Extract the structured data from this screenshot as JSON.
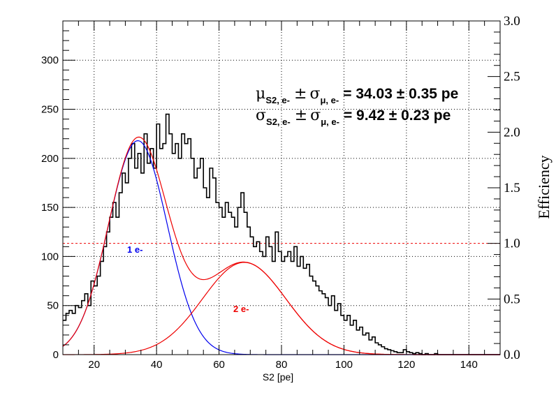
{
  "chart_data": {
    "type": "histogram",
    "title": "",
    "xlabel": "S2 [pe]",
    "ylabel": "",
    "y2label": "Efficiency",
    "xlim": [
      10,
      150
    ],
    "ylim": [
      0,
      340
    ],
    "y2lim": [
      0,
      3.0
    ],
    "xticks": [
      "20",
      "40",
      "60",
      "80",
      "100",
      "120",
      "140"
    ],
    "yticks": [
      "0",
      "50",
      "100",
      "150",
      "200",
      "250",
      "300"
    ],
    "y2ticks": [
      "0.0",
      "0.5",
      "1.0",
      "1.5",
      "2.0",
      "2.5",
      "3.0"
    ],
    "grid": true,
    "histogram": {
      "bin_width": 1,
      "x_start": 10,
      "values": [
        35,
        42,
        45,
        42,
        50,
        48,
        55,
        62,
        50,
        75,
        70,
        80,
        95,
        110,
        125,
        140,
        155,
        140,
        165,
        185,
        175,
        200,
        215,
        190,
        205,
        185,
        225,
        195,
        210,
        190,
        235,
        210,
        215,
        245,
        225,
        205,
        215,
        200,
        225,
        215,
        220,
        200,
        180,
        190,
        200,
        170,
        160,
        190,
        180,
        155,
        150,
        140,
        155,
        145,
        140,
        130,
        150,
        165,
        145,
        130,
        120,
        110,
        115,
        105,
        100,
        120,
        110,
        95,
        125,
        105,
        95,
        100,
        105,
        95,
        110,
        90,
        100,
        88,
        92,
        80,
        75,
        70,
        65,
        62,
        58,
        50,
        60,
        45,
        52,
        40,
        35,
        40,
        30,
        35,
        25,
        28,
        20,
        22,
        15,
        18,
        12,
        10,
        8,
        6,
        5,
        4,
        3,
        2,
        2,
        5,
        3,
        2,
        1,
        2,
        1,
        0,
        1,
        0,
        0,
        1,
        0,
        0,
        0,
        0,
        0,
        0,
        0,
        0,
        0,
        0,
        0,
        0,
        0,
        0,
        0,
        0,
        0,
        0,
        0,
        0
      ]
    },
    "fits": [
      {
        "name": "1 e-",
        "type": "gaussian",
        "color": "#0000ee",
        "amplitude": 218,
        "mean": 34.03,
        "sigma": 9.42
      },
      {
        "name": "2 e-",
        "type": "gaussian",
        "color": "#ee0000",
        "amplitude": 94,
        "mean": 68.06,
        "sigma": 13.32
      },
      {
        "name": "total",
        "type": "sum",
        "color": "#ee0000"
      }
    ],
    "reference_line": {
      "axis": "y2",
      "value": 1.0,
      "style": "dashed",
      "color": "#ee0000"
    },
    "annotations": {
      "label_1e": "1 e-",
      "label_2e": "2 e-",
      "mu_line": "= 34.03 ± 0.35 pe",
      "sigma_line": "= 9.42 ± 0.23 pe",
      "mu_sym": "μ",
      "sigma_sym": "σ",
      "sub_s2e": "S2, e-",
      "pm": "±",
      "sub_mue": "μ, e-"
    }
  }
}
